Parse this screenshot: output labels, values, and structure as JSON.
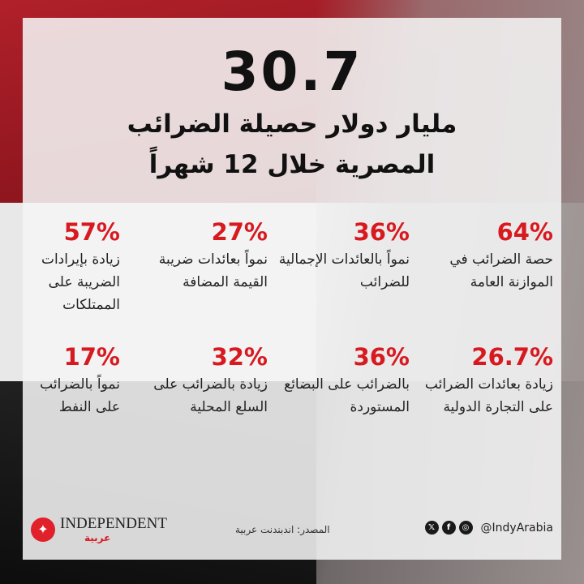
{
  "headline": {
    "number": "30.7",
    "line1": "مليار دولار حصيلة الضرائب",
    "line2": "المصرية خلال 12 شهراً"
  },
  "items": [
    {
      "pct": "64%",
      "desc": "حصة الضرائب في الموازنة العامة"
    },
    {
      "pct": "36%",
      "desc": "نمواً بالعائدات الإجمالية للضرائب"
    },
    {
      "pct": "27%",
      "desc": "نمواً بعائدات ضريبة القيمة المضافة"
    },
    {
      "pct": "57%",
      "desc": "زيادة بإيرادات الضريبة على الممتلكات"
    },
    {
      "pct": "26.7%",
      "desc": "زيادة بعائدات الضرائب على التجارة الدولية"
    },
    {
      "pct": "36%",
      "desc": "بالضرائب على البضائع المستوردة"
    },
    {
      "pct": "32%",
      "desc": "زيادة بالضرائب على السلع المحلية"
    },
    {
      "pct": "17%",
      "desc": "نمواً بالضرائب على النفط"
    }
  ],
  "footer": {
    "brand": "INDEPENDENT",
    "brand_ar": "عربية",
    "source": "المصدر: اندبندنت عربية",
    "handle": "@IndyArabia"
  },
  "colors": {
    "accent": "#d71920"
  }
}
